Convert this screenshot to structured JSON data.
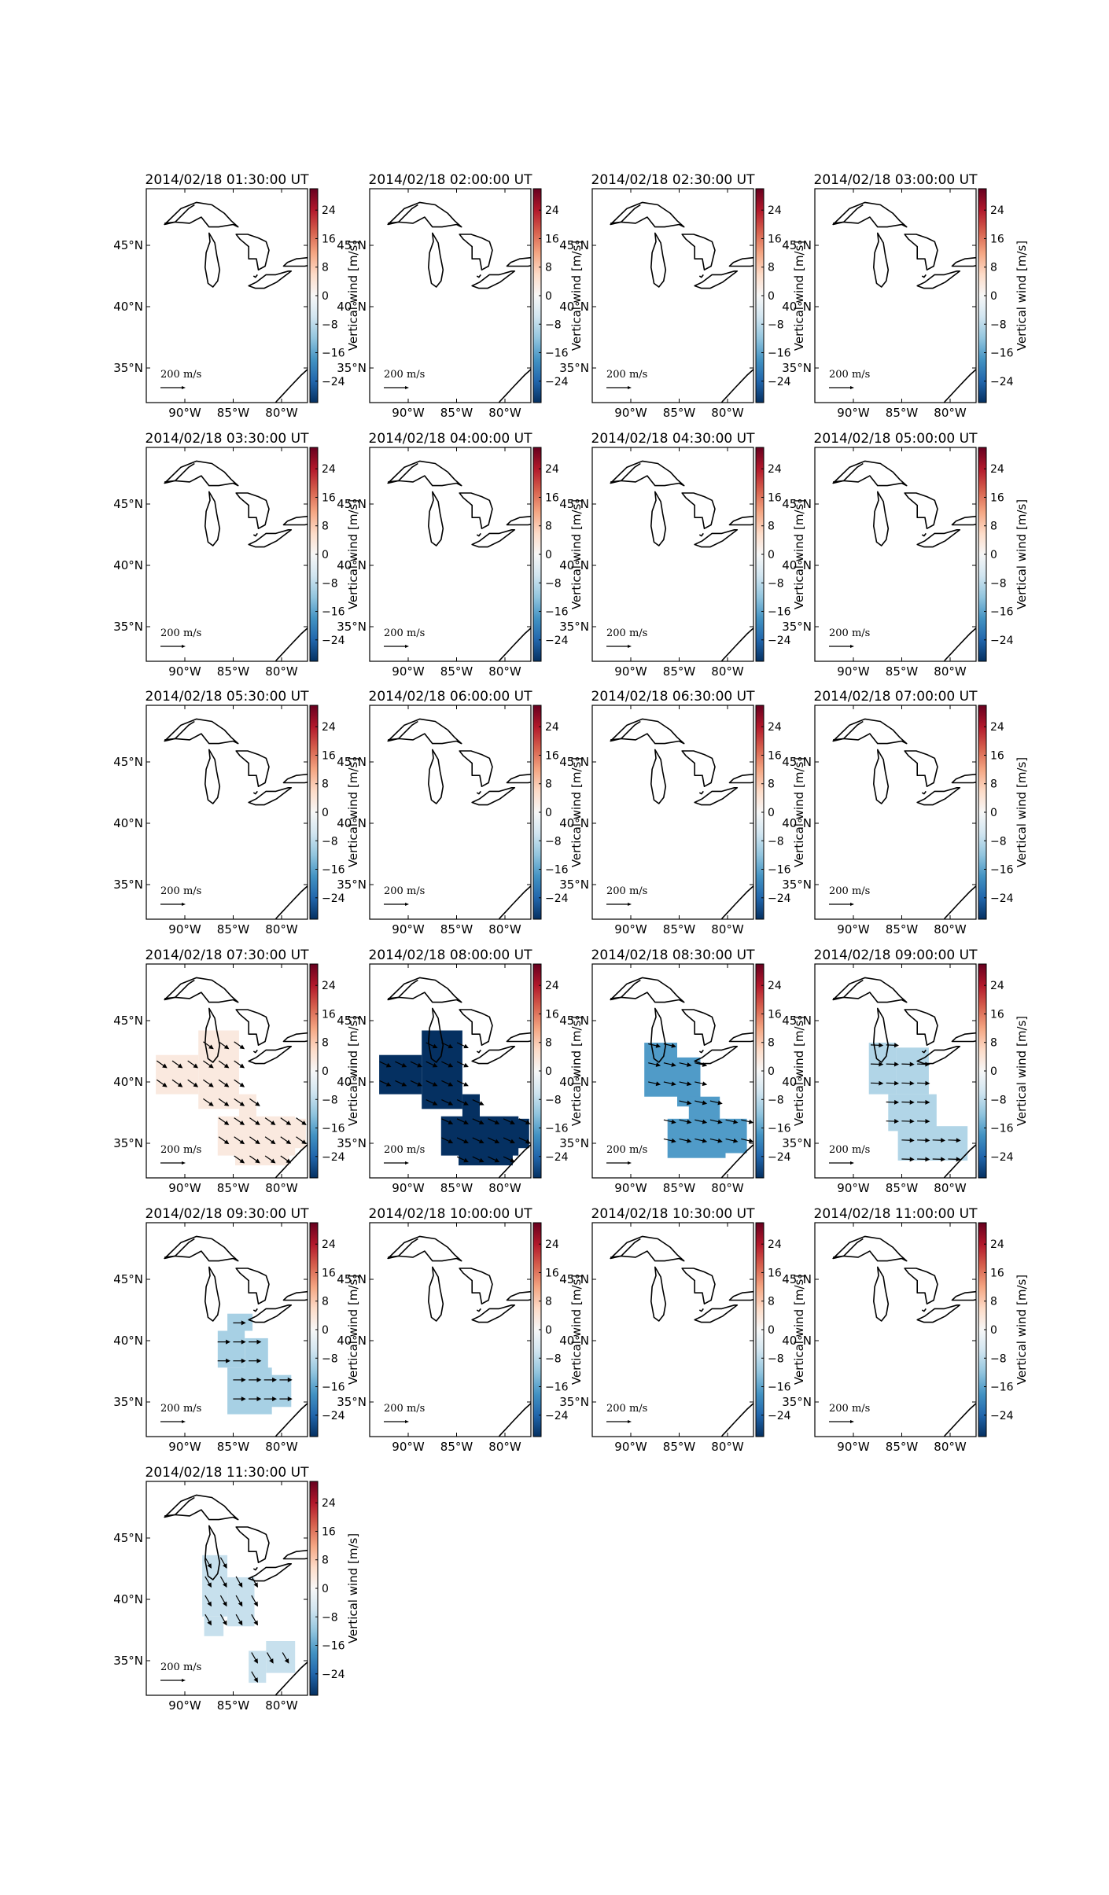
{
  "figure": {
    "colorbar": {
      "label": "Vertical wind [m/s]",
      "ticks": [
        "24",
        "16",
        "8",
        "0",
        "−8",
        "−16",
        "−24"
      ],
      "tick_values": [
        24,
        16,
        8,
        0,
        -8,
        -16,
        -24
      ],
      "range": [
        -30,
        30
      ],
      "colormap": "RdBu_r"
    },
    "axes": {
      "x_ticks": [
        "90°W",
        "85°W",
        "80°W"
      ],
      "y_ticks": [
        "45°N",
        "40°N",
        "35°N"
      ]
    },
    "quiver_key": "200 m/s"
  },
  "panels": [
    {
      "title": "2014/02/18 01:30:00 UT",
      "region": "none",
      "vertical_wind": null
    },
    {
      "title": "2014/02/18 02:00:00 UT",
      "region": "none",
      "vertical_wind": null
    },
    {
      "title": "2014/02/18 02:30:00 UT",
      "region": "none",
      "vertical_wind": null
    },
    {
      "title": "2014/02/18 03:00:00 UT",
      "region": "none",
      "vertical_wind": null
    },
    {
      "title": "2014/02/18 03:30:00 UT",
      "region": "none",
      "vertical_wind": null
    },
    {
      "title": "2014/02/18 04:00:00 UT",
      "region": "none",
      "vertical_wind": null
    },
    {
      "title": "2014/02/18 04:30:00 UT",
      "region": "none",
      "vertical_wind": null
    },
    {
      "title": "2014/02/18 05:00:00 UT",
      "region": "none",
      "vertical_wind": null
    },
    {
      "title": "2014/02/18 05:30:00 UT",
      "region": "none",
      "vertical_wind": null
    },
    {
      "title": "2014/02/18 06:00:00 UT",
      "region": "none",
      "vertical_wind": null
    },
    {
      "title": "2014/02/18 06:30:00 UT",
      "region": "none",
      "vertical_wind": null
    },
    {
      "title": "2014/02/18 07:00:00 UT",
      "region": "none",
      "vertical_wind": null
    },
    {
      "title": "2014/02/18 07:30:00 UT",
      "region": "A",
      "vertical_wind": 3,
      "arrow_deg": 125
    },
    {
      "title": "2014/02/18 08:00:00 UT",
      "region": "A",
      "vertical_wind": -30,
      "arrow_deg": 115
    },
    {
      "title": "2014/02/18 08:30:00 UT",
      "region": "B",
      "vertical_wind": -17,
      "arrow_deg": 103
    },
    {
      "title": "2014/02/18 09:00:00 UT",
      "region": "C",
      "vertical_wind": -9,
      "arrow_deg": 92
    },
    {
      "title": "2014/02/18 09:30:00 UT",
      "region": "D",
      "vertical_wind": -10,
      "arrow_deg": 90
    },
    {
      "title": "2014/02/18 10:00:00 UT",
      "region": "none",
      "vertical_wind": null
    },
    {
      "title": "2014/02/18 10:30:00 UT",
      "region": "none",
      "vertical_wind": null
    },
    {
      "title": "2014/02/18 11:00:00 UT",
      "region": "none",
      "vertical_wind": null
    },
    {
      "title": "2014/02/18 11:30:00 UT",
      "region": "E",
      "vertical_wind": -7,
      "arrow_deg": 150
    }
  ]
}
